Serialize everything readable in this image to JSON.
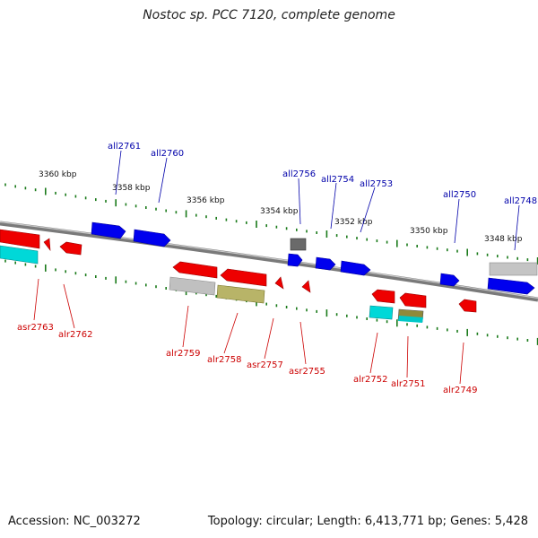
{
  "title": "Nostoc sp. PCC 7120, complete genome",
  "footer": {
    "accession": "Accession: NC_003272",
    "summary": "Topology: circular; Length: 6,413,771 bp; Genes: 5,428"
  },
  "colors": {
    "backbone": "#888888",
    "tick": "#1a7a1a",
    "forward_gene": "#0000ee",
    "reverse_gene": "#ee0000",
    "forward_label": "#0000aa",
    "reverse_label": "#cc0000",
    "cyan": "#00d0d0",
    "gray": "#bbbbbb",
    "olive": "#b5b060",
    "dark": "#666666"
  },
  "scale_labels": [
    "3360 kbp",
    "3358 kbp",
    "3356 kbp",
    "3354 kbp",
    "3352 kbp",
    "3350 kbp",
    "3348 kbp"
  ],
  "genes_top": [
    "all2761",
    "all2760",
    "all2756",
    "all2754",
    "all2753",
    "all2750",
    "all2748"
  ],
  "genes_bottom": [
    "asr2763",
    "alr2762",
    "alr2759",
    "alr2758",
    "asr2757",
    "asr2755",
    "alr2752",
    "alr2751",
    "alr2749"
  ]
}
